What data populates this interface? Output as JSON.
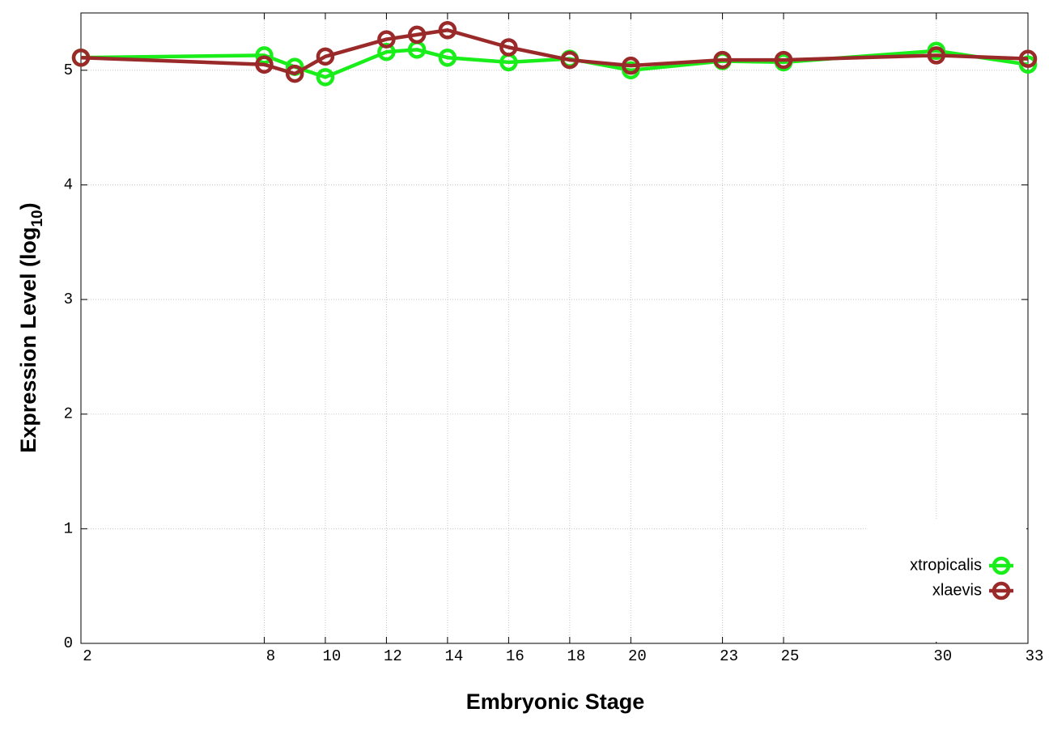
{
  "chart_data": {
    "type": "line",
    "xlabel": "Embryonic Stage",
    "ylabel_parts": [
      "Expression Level (log",
      "10",
      ")"
    ],
    "x": [
      2,
      8,
      9,
      10,
      12,
      13,
      14,
      16,
      18,
      20,
      23,
      25,
      30,
      33
    ],
    "series": [
      {
        "name": "xtropicalis",
        "color": "#1aee1a",
        "values": [
          5.11,
          5.13,
          5.03,
          4.94,
          5.16,
          5.18,
          5.11,
          5.07,
          5.1,
          5.0,
          5.08,
          5.07,
          5.17,
          5.05
        ]
      },
      {
        "name": "xlaevis",
        "color": "#9a2a2a",
        "values": [
          5.11,
          5.05,
          4.97,
          5.12,
          5.27,
          5.31,
          5.35,
          5.2,
          5.09,
          5.04,
          5.09,
          5.09,
          5.13,
          5.1
        ]
      }
    ],
    "xlim": [
      2,
      33
    ],
    "ylim": [
      0,
      5.5
    ],
    "xticks": [
      2,
      8,
      10,
      12,
      14,
      16,
      18,
      20,
      23,
      25,
      30,
      33
    ],
    "yticks": [
      0,
      1,
      2,
      3,
      4,
      5
    ],
    "grid": true,
    "legend": "bottom-right"
  }
}
